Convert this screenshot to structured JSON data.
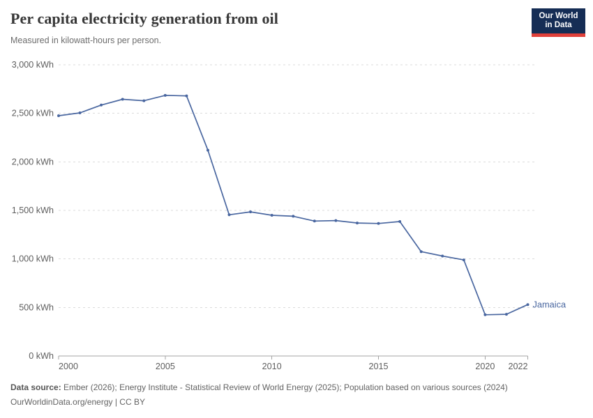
{
  "header": {
    "title": "Per capita electricity generation from oil",
    "subtitle": "Measured in kilowatt-hours per person.",
    "logo": {
      "line1": "Our World",
      "line2": "in Data",
      "bg_color": "#152d55",
      "stripe_color": "#e0403a"
    }
  },
  "chart_data": {
    "type": "line",
    "title": "Per capita electricity generation from oil",
    "unit": "kWh",
    "xlabel": "",
    "ylabel": "",
    "xlim": [
      2000,
      2022
    ],
    "ylim": [
      0,
      3000
    ],
    "grid": "horizontal dashed",
    "legend_position": "end-of-line label",
    "x": [
      2000,
      2001,
      2002,
      2003,
      2004,
      2005,
      2006,
      2007,
      2008,
      2009,
      2010,
      2011,
      2012,
      2013,
      2014,
      2015,
      2016,
      2017,
      2018,
      2019,
      2020,
      2021,
      2022
    ],
    "series": [
      {
        "name": "Jamaica",
        "color": "#4a67a0",
        "values": [
          2475,
          2505,
          2585,
          2645,
          2630,
          2685,
          2680,
          2120,
          1455,
          1485,
          1450,
          1440,
          1390,
          1395,
          1370,
          1365,
          1385,
          1075,
          1030,
          990,
          425,
          430,
          530
        ]
      }
    ],
    "x_ticks": [
      2000,
      2005,
      2010,
      2015,
      2020,
      2022
    ],
    "y_ticks": [
      0,
      500,
      1000,
      1500,
      2000,
      2500,
      3000
    ],
    "y_tick_labels": [
      "0 kWh",
      "500 kWh",
      "1,000 kWh",
      "1,500 kWh",
      "2,000 kWh",
      "2,500 kWh",
      "3,000 kWh"
    ],
    "colors": {
      "gridline": "#dbdbdb",
      "axis": "#a3a3a3",
      "tick_label": "#5e5e5e"
    }
  },
  "footer": {
    "datasource_label": "Data source:",
    "datasource_text": " Ember (2026); Energy Institute - Statistical Review of World Energy (2025); Population based on various sources (2024)",
    "license_line": "OurWorldinData.org/energy | CC BY"
  }
}
